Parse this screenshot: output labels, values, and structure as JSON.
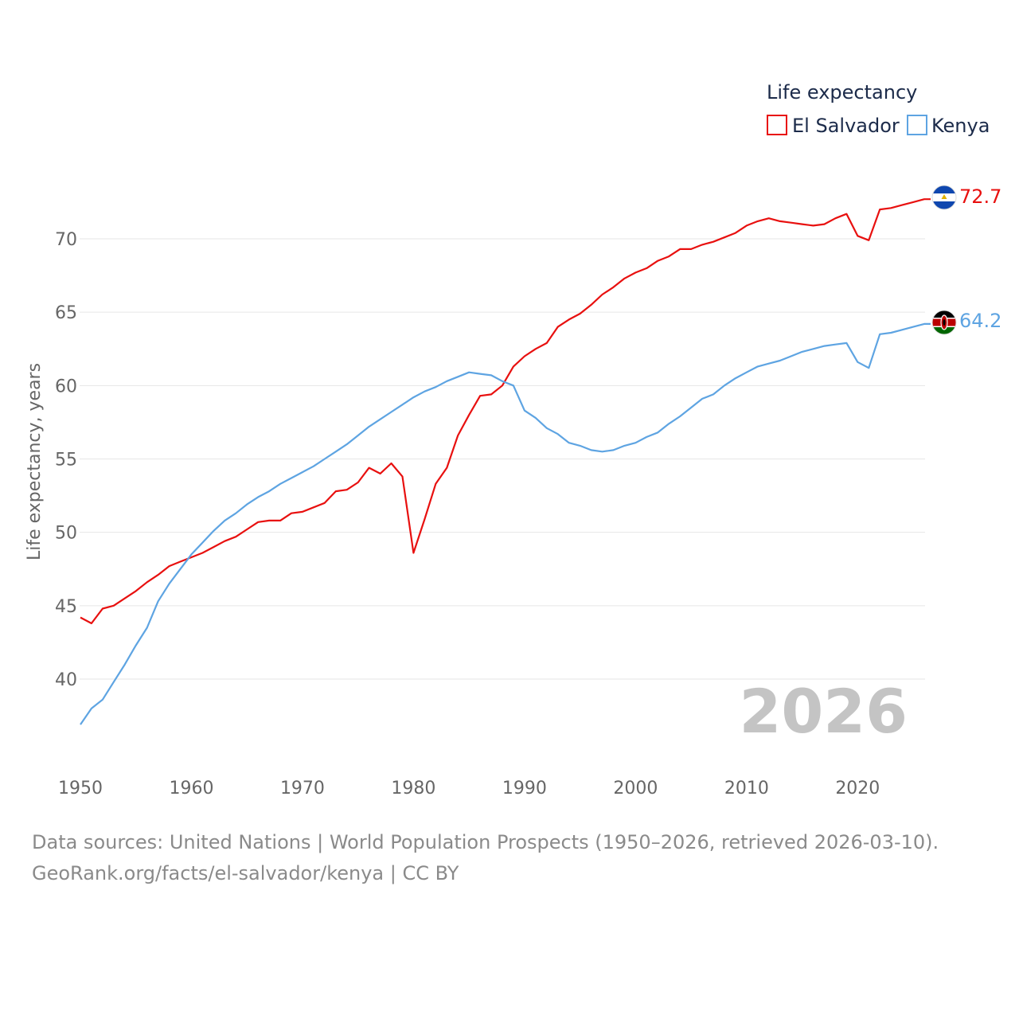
{
  "chart_data": {
    "type": "line",
    "title": "",
    "ylabel": "Life expectancy, years",
    "xlabel": "",
    "xlim": [
      1950,
      2026
    ],
    "ylim": [
      35,
      75
    ],
    "x_ticks": [
      "1950",
      "1960",
      "1970",
      "1980",
      "1990",
      "2000",
      "2010",
      "2020"
    ],
    "y_ticks": [
      "40",
      "45",
      "50",
      "55",
      "60",
      "65",
      "70"
    ],
    "legend_title": "Life expectancy",
    "legend_position": "top-right",
    "current_year_label": "2026",
    "x": [
      1950,
      1951,
      1952,
      1953,
      1954,
      1955,
      1956,
      1957,
      1958,
      1959,
      1960,
      1961,
      1962,
      1963,
      1964,
      1965,
      1966,
      1967,
      1968,
      1969,
      1970,
      1971,
      1972,
      1973,
      1974,
      1975,
      1976,
      1977,
      1978,
      1979,
      1980,
      1981,
      1982,
      1983,
      1984,
      1985,
      1986,
      1987,
      1988,
      1989,
      1990,
      1991,
      1992,
      1993,
      1994,
      1995,
      1996,
      1997,
      1998,
      1999,
      2000,
      2001,
      2002,
      2003,
      2004,
      2005,
      2006,
      2007,
      2008,
      2009,
      2010,
      2011,
      2012,
      2013,
      2014,
      2015,
      2016,
      2017,
      2018,
      2019,
      2020,
      2021,
      2022,
      2023,
      2024,
      2025,
      2026
    ],
    "series": [
      {
        "name": "El Salvador",
        "color": "#e8100f",
        "end_label": "72.7",
        "flag_icon": "el-salvador-flag-icon",
        "values": [
          44.2,
          43.8,
          44.8,
          45.0,
          45.5,
          46.0,
          46.6,
          47.1,
          47.7,
          48.0,
          48.3,
          48.6,
          49.0,
          49.4,
          49.7,
          50.2,
          50.7,
          50.8,
          50.8,
          51.3,
          51.4,
          51.7,
          52.0,
          52.8,
          52.9,
          53.4,
          54.4,
          54.0,
          54.7,
          53.8,
          48.6,
          50.9,
          53.3,
          54.4,
          56.6,
          58.0,
          59.3,
          59.4,
          60.0,
          61.3,
          62.0,
          62.5,
          62.9,
          64.0,
          64.5,
          64.9,
          65.5,
          66.2,
          66.7,
          67.3,
          67.7,
          68.0,
          68.5,
          68.8,
          69.3,
          69.3,
          69.6,
          69.8,
          70.1,
          70.4,
          70.9,
          71.2,
          71.4,
          71.2,
          71.1,
          71.0,
          70.9,
          71.0,
          71.4,
          71.7,
          70.2,
          69.9,
          72.0,
          72.1,
          72.3,
          72.5,
          72.7
        ]
      },
      {
        "name": "Kenya",
        "color": "#5ea4e2",
        "end_label": "64.2",
        "flag_icon": "kenya-flag-icon",
        "values": [
          36.9,
          38.0,
          38.6,
          39.8,
          41.0,
          42.3,
          43.5,
          45.3,
          46.5,
          47.5,
          48.5,
          49.3,
          50.1,
          50.8,
          51.3,
          51.9,
          52.4,
          52.8,
          53.3,
          53.7,
          54.1,
          54.5,
          55.0,
          55.5,
          56.0,
          56.6,
          57.2,
          57.7,
          58.2,
          58.7,
          59.2,
          59.6,
          59.9,
          60.3,
          60.6,
          60.9,
          60.8,
          60.7,
          60.3,
          60.0,
          58.3,
          57.8,
          57.1,
          56.7,
          56.1,
          55.9,
          55.6,
          55.5,
          55.6,
          55.9,
          56.1,
          56.5,
          56.8,
          57.4,
          57.9,
          58.5,
          59.1,
          59.4,
          60.0,
          60.5,
          60.9,
          61.3,
          61.5,
          61.7,
          62.0,
          62.3,
          62.5,
          62.7,
          62.8,
          62.9,
          61.6,
          61.2,
          63.5,
          63.6,
          63.8,
          64.0,
          64.2
        ]
      }
    ]
  },
  "footer": {
    "line1": "Data sources: United Nations | World Population Prospects (1950–2026, retrieved 2026-03-10).",
    "line2": "GeoRank.org/facts/el-salvador/kenya | CC BY"
  }
}
